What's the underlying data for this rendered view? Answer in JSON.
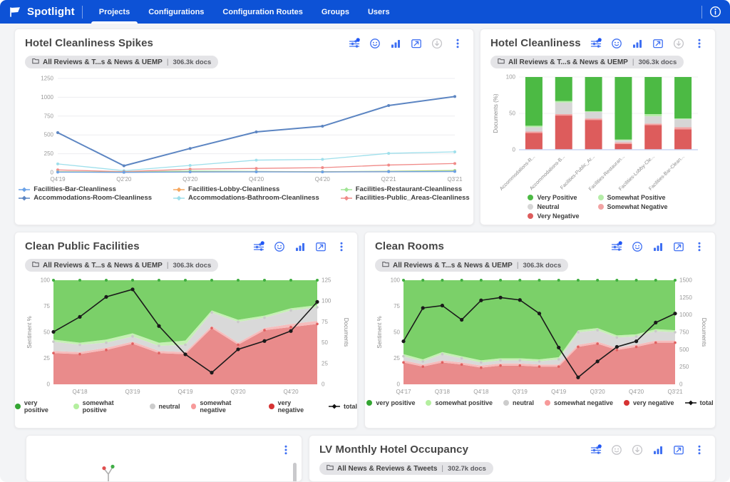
{
  "navbar": {
    "brand": "Spotlight",
    "items": [
      {
        "label": "Projects",
        "active": true
      },
      {
        "label": "Configurations",
        "active": false
      },
      {
        "label": "Configuration Routes",
        "active": false
      },
      {
        "label": "Groups",
        "active": false
      },
      {
        "label": "Users",
        "active": false
      }
    ]
  },
  "cards": {
    "spikes": {
      "title": "Hotel Cleanliness Spikes",
      "badge": {
        "scope": "All Reviews & T...s & News & UEMP",
        "docs": "306.3k docs"
      },
      "icons": [
        {
          "name": "filter-sliders",
          "variant": "blue",
          "badge": true
        },
        {
          "name": "sentiment",
          "variant": "blue"
        },
        {
          "name": "bar-chart",
          "variant": "blue"
        },
        {
          "name": "trend-calendar",
          "variant": "blue"
        },
        {
          "name": "download",
          "variant": "gray"
        },
        {
          "name": "overflow-menu",
          "variant": "blue"
        }
      ]
    },
    "cleanliness": {
      "title": "Hotel Cleanliness",
      "badge": {
        "scope": "All Reviews & T...s & News & UEMP",
        "docs": "306.3k docs"
      },
      "icons": [
        {
          "name": "filter-sliders",
          "variant": "blue",
          "badge": true
        },
        {
          "name": "sentiment",
          "variant": "blue"
        },
        {
          "name": "bar-chart",
          "variant": "blue"
        },
        {
          "name": "trend-calendar",
          "variant": "blue"
        },
        {
          "name": "download",
          "variant": "gray"
        },
        {
          "name": "overflow-menu",
          "variant": "blue"
        }
      ]
    },
    "public_facilities": {
      "title": "Clean Public Facilities",
      "badge": {
        "scope": "All Reviews & T...s & News & UEMP",
        "docs": "306.3k docs"
      },
      "icons": [
        {
          "name": "filter-sliders",
          "variant": "blue",
          "badge": true
        },
        {
          "name": "sentiment",
          "variant": "blue"
        },
        {
          "name": "bar-chart",
          "variant": "blue"
        },
        {
          "name": "trend-calendar",
          "variant": "blue"
        },
        {
          "name": "overflow-menu",
          "variant": "blue"
        }
      ]
    },
    "rooms": {
      "title": "Clean Rooms",
      "badge": {
        "scope": "All Reviews & T...s & News & UEMP",
        "docs": "306.3k docs"
      },
      "icons": [
        {
          "name": "filter-sliders",
          "variant": "blue",
          "badge": true
        },
        {
          "name": "sentiment",
          "variant": "blue"
        },
        {
          "name": "bar-chart",
          "variant": "blue"
        },
        {
          "name": "trend-calendar",
          "variant": "blue"
        },
        {
          "name": "overflow-menu",
          "variant": "blue"
        }
      ]
    },
    "tree": {
      "icons": [
        {
          "name": "overflow-menu",
          "variant": "blue"
        }
      ]
    },
    "occupancy": {
      "title": "LV Monthly Hotel Occupancy",
      "badge": {
        "scope": "All News & Reviews & Tweets",
        "docs": "302.7k docs"
      },
      "icons": [
        {
          "name": "filter-sliders",
          "variant": "blue",
          "badge": true
        },
        {
          "name": "sentiment",
          "variant": "gray"
        },
        {
          "name": "download",
          "variant": "gray"
        },
        {
          "name": "bar-chart",
          "variant": "blue"
        },
        {
          "name": "trend-calendar",
          "variant": "blue"
        },
        {
          "name": "overflow-menu",
          "variant": "blue"
        }
      ]
    }
  },
  "chart_data": [
    {
      "id": "chart-spikes",
      "type": "line",
      "title": "Hotel Cleanliness Spikes",
      "x": [
        "Q4'19",
        "Q2'20",
        "Q3'20",
        "Q4'20",
        "Q4'20",
        "Q2'21",
        "Q3'21"
      ],
      "ylim": [
        0,
        1250
      ],
      "yticks": [
        0,
        250,
        500,
        750,
        1000,
        1250
      ],
      "series": [
        {
          "name": "Accommodations-Room-Cleanliness",
          "color": "#5c85c2",
          "values": [
            530,
            90,
            320,
            540,
            615,
            890,
            1010
          ]
        },
        {
          "name": "Accommodations-Bathroom-Cleanliness",
          "color": "#9edfeb",
          "values": [
            115,
            25,
            95,
            165,
            175,
            255,
            275
          ]
        },
        {
          "name": "Facilities-Public_Areas-Cleanliness",
          "color": "#f08a88",
          "values": [
            35,
            12,
            45,
            55,
            65,
            100,
            120
          ]
        },
        {
          "name": "Facilities-Restaurant-Cleanliness",
          "color": "#a1e595",
          "values": [
            12,
            6,
            20,
            15,
            12,
            18,
            28
          ]
        },
        {
          "name": "Facilities-Lobby-Cleanliness",
          "color": "#f6a75e",
          "values": [
            8,
            4,
            10,
            12,
            10,
            14,
            16
          ]
        },
        {
          "name": "Facilities-Bar-Cleanliness",
          "color": "#6aa2e8",
          "values": [
            6,
            3,
            8,
            10,
            8,
            12,
            14
          ]
        }
      ],
      "legend": [
        {
          "label": "Facilities-Bar-Cleanliness",
          "color": "#6aa2e8",
          "marker": "line"
        },
        {
          "label": "Facilities-Lobby-Cleanliness",
          "color": "#f6a75e",
          "marker": "line"
        },
        {
          "label": "Facilities-Restaurant-Cleanliness",
          "color": "#a1e595",
          "marker": "line"
        },
        {
          "label": "Accommodations-Room-Cleanliness",
          "color": "#5c85c2",
          "marker": "line"
        },
        {
          "label": "Accommodations-Bathroom-Cleanliness",
          "color": "#9edfeb",
          "marker": "line"
        },
        {
          "label": "Facilities-Public_Areas-Cleanliness",
          "color": "#f08a88",
          "marker": "line"
        }
      ]
    },
    {
      "id": "chart-cleanliness",
      "type": "bar",
      "title": "Hotel Cleanliness",
      "ylabel": "Documents (%)",
      "yticks": [
        0,
        50,
        100
      ],
      "categories": [
        "Accommodations-R...",
        "Accommodations-B...",
        "Facilities-Public_Ar...",
        "Facilities-Restauran...",
        "Facilities-Lobby-Cle...",
        "Facilities-Bar-Clean..."
      ],
      "series": [
        {
          "name": "Very Negative",
          "color": "#dd5c5c",
          "values": [
            23,
            47,
            41,
            8,
            34,
            28
          ]
        },
        {
          "name": "Somewhat Negative",
          "color": "#f2a3a3",
          "values": [
            2,
            2,
            2,
            2,
            2,
            3
          ]
        },
        {
          "name": "Neutral",
          "color": "#d6d6d6",
          "values": [
            6,
            16,
            9,
            3,
            10,
            11
          ]
        },
        {
          "name": "Somewhat Positive",
          "color": "#b5eda8",
          "values": [
            2,
            2,
            1,
            1,
            3,
            1
          ]
        },
        {
          "name": "Very Positive",
          "color": "#4cba44",
          "values": [
            67,
            33,
            47,
            86,
            51,
            57
          ]
        }
      ],
      "legend": [
        {
          "label": "Very Positive",
          "color": "#4cba44",
          "marker": "dot"
        },
        {
          "label": "Somewhat Positive",
          "color": "#b5eda8",
          "marker": "dot"
        },
        {
          "label": "Neutral",
          "color": "#d6d6d6",
          "marker": "dot"
        },
        {
          "label": "Somewhat Negative",
          "color": "#f2a3a3",
          "marker": "dot"
        },
        {
          "label": "Very Negative",
          "color": "#dd5c5c",
          "marker": "dot"
        }
      ]
    },
    {
      "id": "chart-public-facilities",
      "type": "area",
      "title": "Clean Public Facilities",
      "ylabel_left": "Sentiment %",
      "ylabel_right": "Documents",
      "left_ticks": [
        0,
        25,
        50,
        75,
        100
      ],
      "right_ylim": [
        0,
        125
      ],
      "right_ticks": [
        0,
        25,
        50,
        75,
        100,
        125
      ],
      "points": 11,
      "x_labels": [
        "Q4'18",
        "Q3'19",
        "Q4'19",
        "Q3'20",
        "Q4'20"
      ],
      "label_indices": [
        1,
        3,
        5,
        7,
        9
      ],
      "sentiment": {
        "very_negative": [
          30,
          29,
          33,
          39,
          30,
          29,
          54,
          38,
          52,
          55,
          58
        ],
        "somewhat_negative": [
          2,
          2,
          2,
          2,
          2,
          2,
          2,
          2,
          2,
          3,
          3
        ],
        "neutral": [
          9,
          7,
          5,
          5,
          5,
          7,
          13,
          20,
          10,
          13,
          13
        ],
        "somewhat_positive": [
          2,
          2,
          3,
          3,
          3,
          4,
          2,
          2,
          2,
          2,
          2
        ],
        "very_positive": [
          57,
          60,
          57,
          51,
          60,
          58,
          29,
          38,
          34,
          27,
          24
        ]
      },
      "total": [
        63,
        81,
        105,
        114,
        70,
        36,
        14,
        42,
        52,
        64,
        99
      ],
      "colors": {
        "very_negative": "#e98b8b",
        "somewhat_negative": "#f6bcbc",
        "neutral": "#d9d9d9",
        "somewhat_positive": "#c5f0b4",
        "very_positive": "#7bd069",
        "total": "#1a1a1a"
      },
      "legend": [
        {
          "label": "very positive",
          "color": "#33a532",
          "marker": "dot"
        },
        {
          "label": "somewhat positive",
          "color": "#b4ef9f",
          "marker": "dot"
        },
        {
          "label": "neutral",
          "color": "#cccccc",
          "marker": "dot"
        },
        {
          "label": "somewhat negative",
          "color": "#f79a9a",
          "marker": "dot"
        },
        {
          "label": "very negative",
          "color": "#d63333",
          "marker": "dot"
        },
        {
          "label": "total",
          "color": "#111111",
          "marker": "line"
        }
      ]
    },
    {
      "id": "chart-rooms",
      "type": "area",
      "title": "Clean Rooms",
      "ylabel_left": "Sentiment %",
      "ylabel_right": "Documents",
      "left_ticks": [
        0,
        25,
        50,
        75,
        100
      ],
      "right_ylim": [
        0,
        1500
      ],
      "right_ticks": [
        0,
        250,
        500,
        750,
        1000,
        1250,
        1500
      ],
      "points": 15,
      "x_labels": [
        "Q4'17",
        "Q3'18",
        "Q4'18",
        "Q3'19",
        "Q4'19",
        "Q3'20",
        "Q4'20",
        "Q3'21"
      ],
      "label_indices": [
        0,
        2,
        4,
        6,
        8,
        10,
        12,
        14
      ],
      "sentiment": {
        "very_negative": [
          21,
          17,
          21,
          19,
          16,
          18,
          18,
          17,
          17,
          36,
          39,
          33,
          36,
          40,
          40
        ],
        "somewhat_negative": [
          2,
          2,
          2,
          2,
          2,
          2,
          2,
          2,
          2,
          2,
          2,
          2,
          2,
          2,
          2
        ],
        "neutral": [
          4,
          3,
          6,
          4,
          3,
          3,
          3,
          3,
          5,
          12,
          11,
          10,
          8,
          9,
          8
        ],
        "somewhat_positive": [
          2,
          2,
          2,
          2,
          2,
          2,
          2,
          2,
          2,
          2,
          2,
          2,
          2,
          2,
          2
        ],
        "very_positive": [
          71,
          76,
          69,
          73,
          77,
          75,
          75,
          76,
          74,
          48,
          46,
          53,
          52,
          47,
          48
        ]
      },
      "total": [
        620,
        1100,
        1135,
        930,
        1210,
        1250,
        1215,
        1020,
        530,
        100,
        330,
        540,
        620,
        890,
        1020
      ],
      "colors": {
        "very_negative": "#e98b8b",
        "somewhat_negative": "#f6bcbc",
        "neutral": "#d9d9d9",
        "somewhat_positive": "#c5f0b4",
        "very_positive": "#7bd069",
        "total": "#1a1a1a"
      },
      "legend": [
        {
          "label": "very positive",
          "color": "#33a532",
          "marker": "dot"
        },
        {
          "label": "somewhat positive",
          "color": "#b4ef9f",
          "marker": "dot"
        },
        {
          "label": "neutral",
          "color": "#cccccc",
          "marker": "dot"
        },
        {
          "label": "somewhat negative",
          "color": "#f79a9a",
          "marker": "dot"
        },
        {
          "label": "very negative",
          "color": "#d63333",
          "marker": "dot"
        },
        {
          "label": "total",
          "color": "#111111",
          "marker": "line"
        }
      ]
    }
  ],
  "colors": {
    "navbar": "#0d52d6",
    "accent_blue": "#3e6ff2",
    "icon_gray": "#c4c4c8"
  }
}
